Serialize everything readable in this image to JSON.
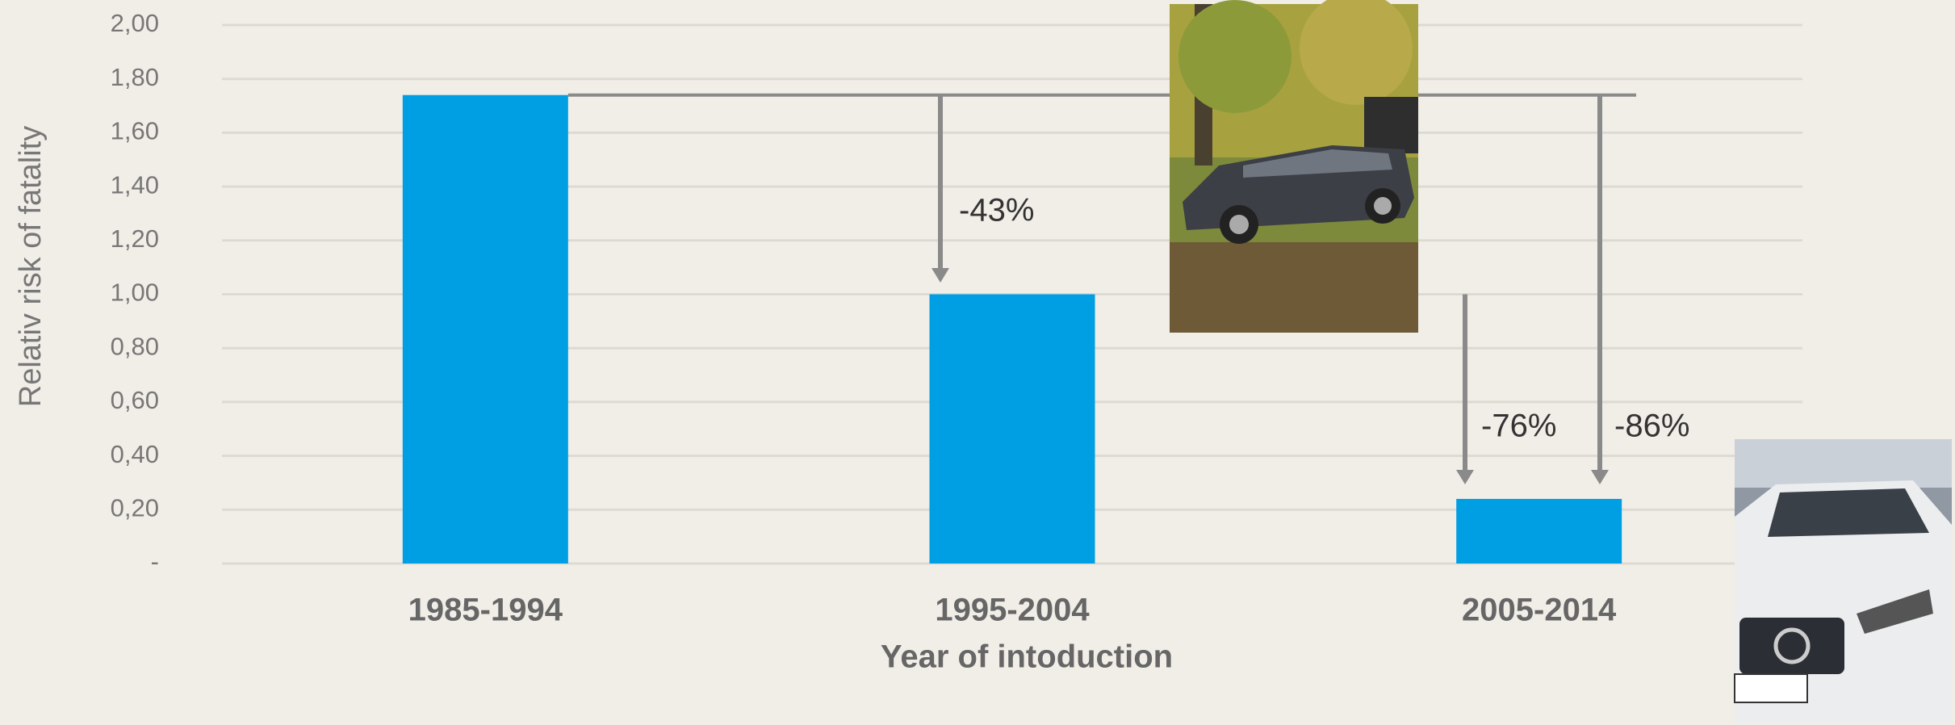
{
  "chart_data": {
    "type": "bar",
    "y_label": "Relativ risk of fatality",
    "x_label": "Year of intoduction",
    "categories": [
      "1985-1994",
      "1995-2004",
      "2005-2014"
    ],
    "values": [
      1.74,
      1.0,
      0.24
    ],
    "color": "#009fe3",
    "ylim": [
      0,
      2
    ],
    "yticks": [
      {
        "value": 0,
        "label": "-"
      },
      {
        "value": 0.2,
        "label": "0,20"
      },
      {
        "value": 0.4,
        "label": "0,40"
      },
      {
        "value": 0.6,
        "label": "0,60"
      },
      {
        "value": 0.8,
        "label": "0,80"
      },
      {
        "value": 1.0,
        "label": "1,00"
      },
      {
        "value": 1.2,
        "label": "1,20"
      },
      {
        "value": 1.4,
        "label": "1,40"
      },
      {
        "value": 1.6,
        "label": "1,60"
      },
      {
        "value": 1.8,
        "label": "1,80"
      },
      {
        "value": 2.0,
        "label": "2,00"
      }
    ],
    "grid": true,
    "annotations": [
      "-43%",
      "-76%",
      "-86%"
    ]
  }
}
